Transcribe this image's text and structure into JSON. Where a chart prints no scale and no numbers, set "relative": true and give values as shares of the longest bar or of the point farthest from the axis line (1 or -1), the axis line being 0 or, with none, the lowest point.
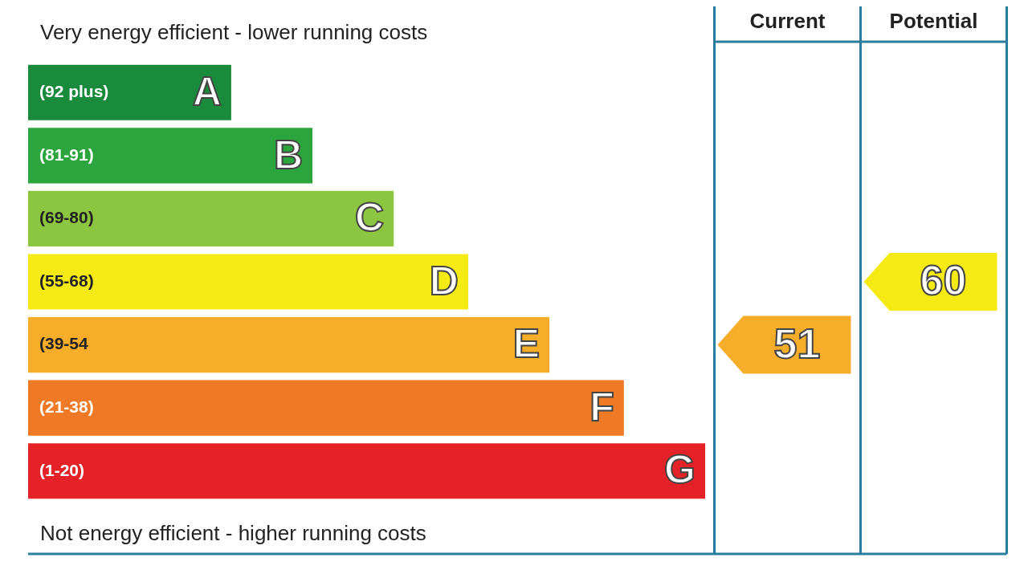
{
  "chart_data": [
    {
      "type": "bar",
      "orientation": "horizontal",
      "relative": true,
      "title": "Very energy efficient - lower running costs",
      "categories": [
        "A",
        "B",
        "C",
        "D",
        "E",
        "F",
        "G"
      ],
      "values": [
        0.3,
        0.42,
        0.54,
        0.65,
        0.77,
        0.88,
        1
      ],
      "colors": [
        "#1a8a3c",
        "#2ca53f",
        "#8cc53f",
        "#f5ea14",
        "#f6ad2a",
        "#ee7a26",
        "#e42228"
      ],
      "annotations": [
        "Not energy efficient - higher running costs",
        "(92 plus)",
        "(81-91)",
        "(69-80)",
        "(55-68)",
        "(39-54",
        "(21-38)",
        "(1-20)"
      ]
    },
    {
      "type": "other",
      "categories": [
        "Current",
        "Potential"
      ],
      "values": [
        51,
        60
      ],
      "data_labels": true,
      "colors": [
        "#f6ad2a",
        "#f5ea14"
      ]
    }
  ]
}
